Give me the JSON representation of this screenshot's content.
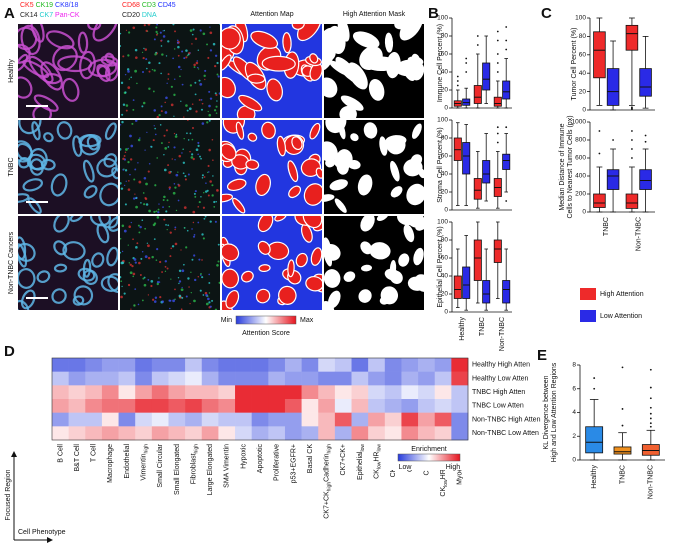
{
  "panel_labels": [
    "A",
    "B",
    "C",
    "D",
    "E"
  ],
  "figure_a": {
    "channel_groups": [
      [
        [
          {
            "text": "CK5",
            "color": "#ff2020"
          },
          {
            "text": "CK19",
            "color": "#22bb22"
          },
          {
            "text": "CK8/18",
            "color": "#2233ff"
          }
        ],
        [
          {
            "text": "CK14",
            "color": "#222222"
          },
          {
            "text": "CK7",
            "color": "#22cccc"
          },
          {
            "text": "Pan-CK",
            "color": "#ee22ee"
          }
        ]
      ],
      [
        [
          {
            "text": "CD68",
            "color": "#ff2020"
          },
          {
            "text": "CD3",
            "color": "#22bb22"
          },
          {
            "text": "CD45",
            "color": "#2233ff"
          }
        ],
        [
          {
            "text": "CD20",
            "color": "#222222"
          },
          {
            "text": "DNA",
            "color": "#22cccc"
          }
        ]
      ]
    ],
    "column_titles": [
      "Attention Map",
      "High Attention Mask"
    ],
    "row_labels": [
      "Healthy",
      "TNBC",
      "Non-TNBC Cancers"
    ],
    "colorbar": {
      "min_label": "Min",
      "max_label": "Max",
      "title": "Attention Score"
    }
  },
  "legend": [
    {
      "name": "High Attention",
      "color": "#ee2a2a"
    },
    {
      "name": "Low Attention",
      "color": "#2a2ae6"
    }
  ],
  "chart_data": [
    {
      "type": "box",
      "ylabel": [
        "Immune Cell Percent (%)"
      ],
      "ylim": [
        0,
        100
      ],
      "yticks": [
        0,
        20,
        40,
        60,
        80,
        100
      ],
      "series": [
        {
          "color": "#ee2a2a",
          "values": [
            {
              "min": 0,
              "q1": 2,
              "median": 5,
              "q3": 8,
              "max": 20,
              "outliers": [
                25,
                30,
                35
              ]
            },
            {
              "min": 0,
              "q1": 5,
              "median": 12,
              "q3": 25,
              "max": 60,
              "outliers": [
                70,
                80
              ]
            },
            {
              "min": 0,
              "q1": 2,
              "median": 5,
              "q3": 12,
              "max": 30,
              "outliers": [
                40,
                50,
                60,
                75,
                85
              ]
            }
          ]
        },
        {
          "color": "#2a2ae6",
          "values": [
            {
              "min": 0,
              "q1": 3,
              "median": 6,
              "q3": 10,
              "max": 22,
              "outliers": [
                40,
                50,
                55
              ]
            },
            {
              "min": 5,
              "q1": 20,
              "median": 32,
              "q3": 50,
              "max": 80,
              "outliers": []
            },
            {
              "min": 0,
              "q1": 10,
              "median": 18,
              "q3": 30,
              "max": 55,
              "outliers": [
                65,
                75,
                90
              ]
            }
          ]
        }
      ]
    },
    {
      "type": "box",
      "ylabel": [
        "Stroma Cell Percent (%)"
      ],
      "ylim": [
        0,
        100
      ],
      "yticks": [
        0,
        20,
        40,
        60,
        80,
        100
      ],
      "series": [
        {
          "color": "#ee2a2a",
          "values": [
            {
              "min": 5,
              "q1": 55,
              "median": 67,
              "q3": 80,
              "max": 97,
              "outliers": []
            },
            {
              "min": 2,
              "q1": 12,
              "median": 22,
              "q3": 35,
              "max": 65,
              "outliers": []
            },
            {
              "min": 2,
              "q1": 15,
              "median": 25,
              "q3": 35,
              "max": 65,
              "outliers": [
                75,
                85,
                92
              ]
            }
          ]
        },
        {
          "color": "#2a2ae6",
          "values": [
            {
              "min": 5,
              "q1": 40,
              "median": 60,
              "q3": 75,
              "max": 95,
              "outliers": []
            },
            {
              "min": 10,
              "q1": 30,
              "median": 40,
              "q3": 55,
              "max": 85,
              "outliers": []
            },
            {
              "min": 20,
              "q1": 45,
              "median": 55,
              "q3": 62,
              "max": 85,
              "outliers": [
                10,
                92
              ]
            }
          ]
        }
      ]
    },
    {
      "type": "box",
      "ylabel": [
        "Epithelial Cell Percent (%)"
      ],
      "ylim": [
        0,
        100
      ],
      "yticks": [
        0,
        20,
        40,
        60,
        80,
        100
      ],
      "categories": [
        "Healthy",
        "TNBC",
        "Non-TNBC"
      ],
      "series": [
        {
          "color": "#ee2a2a",
          "values": [
            {
              "min": 5,
              "q1": 15,
              "median": 25,
              "q3": 40,
              "max": 70,
              "outliers": []
            },
            {
              "min": 10,
              "q1": 35,
              "median": 60,
              "q3": 80,
              "max": 100,
              "outliers": []
            },
            {
              "min": 15,
              "q1": 55,
              "median": 70,
              "q3": 80,
              "max": 100,
              "outliers": []
            }
          ]
        },
        {
          "color": "#2a2ae6",
          "values": [
            {
              "min": 2,
              "q1": 15,
              "median": 30,
              "q3": 50,
              "max": 85,
              "outliers": []
            },
            {
              "min": 2,
              "q1": 10,
              "median": 20,
              "q3": 35,
              "max": 70,
              "outliers": []
            },
            {
              "min": 2,
              "q1": 10,
              "median": 25,
              "q3": 35,
              "max": 70,
              "outliers": []
            }
          ]
        }
      ]
    },
    {
      "type": "box",
      "ylabel": [
        "Tumor Cell Percent (%)"
      ],
      "ylim": [
        0,
        100
      ],
      "yticks": [
        0,
        20,
        40,
        60,
        80,
        100
      ],
      "series": [
        {
          "color": "#ee2a2a",
          "values": [
            {
              "min": 5,
              "q1": 35,
              "median": 65,
              "q3": 85,
              "max": 100,
              "outliers": []
            },
            {
              "min": 5,
              "q1": 65,
              "median": 83,
              "q3": 92,
              "max": 100,
              "outliers": [
                1,
                2,
                3
              ]
            }
          ]
        },
        {
          "color": "#2a2ae6",
          "values": [
            {
              "min": 0,
              "q1": 5,
              "median": 20,
              "q3": 45,
              "max": 75,
              "outliers": []
            },
            {
              "min": 2,
              "q1": 15,
              "median": 25,
              "q3": 45,
              "max": 80,
              "outliers": []
            }
          ]
        }
      ]
    },
    {
      "type": "box",
      "ylabel": [
        "Median Distance of Immune",
        "Cells to Nearest Tumor Cells (px)"
      ],
      "ylim": [
        0,
        1000
      ],
      "yticks": [
        0,
        200,
        400,
        600,
        800,
        1000
      ],
      "categories": [
        "TNBC",
        "Non-TNBC"
      ],
      "series": [
        {
          "color": "#ee2a2a",
          "values": [
            {
              "min": 0,
              "q1": 50,
              "median": 100,
              "q3": 200,
              "max": 500,
              "outliers": [
                650,
                900
              ]
            },
            {
              "min": 0,
              "q1": 40,
              "median": 100,
              "q3": 200,
              "max": 500,
              "outliers": [
                600,
                700,
                800,
                900
              ]
            }
          ]
        },
        {
          "color": "#2a2ae6",
          "values": [
            {
              "min": 0,
              "q1": 250,
              "median": 400,
              "q3": 470,
              "max": 700,
              "outliers": [
                800
              ]
            },
            {
              "min": 0,
              "q1": 250,
              "median": 350,
              "q3": 470,
              "max": 700,
              "outliers": [
                780,
                850
              ]
            }
          ]
        }
      ]
    },
    {
      "type": "heatmap",
      "rows": [
        "Healthy High Atten",
        "Healthy Low Atten",
        "TNBC High Atten",
        "TNBC Low Atten",
        "Non-TNBC High Atten",
        "Non-TNBC Low Atten"
      ],
      "columns": [
        [
          {
            "text": "B Cell"
          }
        ],
        [
          {
            "text": "B&T Cell"
          }
        ],
        [
          {
            "text": "T Cell"
          }
        ],
        [
          {
            "text": "Macrophage"
          }
        ],
        [
          {
            "text": "Endothelial"
          }
        ],
        [
          {
            "text": "Vimentin"
          },
          {
            "text": "high",
            "sub": true
          }
        ],
        [
          {
            "text": "Small Circular"
          }
        ],
        [
          {
            "text": "Small Elongated"
          }
        ],
        [
          {
            "text": "Fibroblast"
          },
          {
            "text": "high",
            "sub": true
          }
        ],
        [
          {
            "text": "Large Elongated"
          }
        ],
        [
          {
            "text": "SMA Vimentin"
          }
        ],
        [
          {
            "text": "Hypoxic"
          }
        ],
        [
          {
            "text": "Apoptotic"
          }
        ],
        [
          {
            "text": "Proliferative"
          }
        ],
        [
          {
            "text": "p53+EGFR+"
          }
        ],
        [
          {
            "text": "Basal CK"
          }
        ],
        [
          {
            "text": "CK7+CK"
          },
          {
            "text": "high",
            "sub": true
          },
          {
            "text": "Cadherin"
          },
          {
            "text": "high",
            "sub": true
          }
        ],
        [
          {
            "text": "CK7+CK+"
          }
        ],
        [
          {
            "text": "Epithelial"
          },
          {
            "text": "low",
            "sub": true
          }
        ],
        [
          {
            "text": "CK"
          },
          {
            "text": "low",
            "sub": true
          },
          {
            "text": "HR"
          },
          {
            "text": "low",
            "sub": true
          }
        ],
        [
          {
            "text": "CK+ HR"
          },
          {
            "text": "low",
            "sub": true
          }
        ],
        [
          {
            "text": "CK+HR+"
          }
        ],
        [
          {
            "text": "CK+HR"
          },
          {
            "text": "low",
            "sub": true
          }
        ],
        [
          {
            "text": "CK"
          },
          {
            "text": "low",
            "sub": true
          },
          {
            "text": "HR"
          },
          {
            "text": "high",
            "sub": true
          },
          {
            "text": "p53+"
          }
        ],
        [
          {
            "text": "Myoepithelial"
          }
        ]
      ],
      "values": [
        [
          -0.7,
          -0.7,
          -0.6,
          -0.5,
          -0.5,
          -0.7,
          -0.6,
          -0.6,
          -0.3,
          -0.6,
          -0.7,
          -0.7,
          -0.7,
          -0.6,
          -0.4,
          -0.6,
          -0.2,
          -0.3,
          -0.7,
          -0.3,
          -0.6,
          -0.5,
          -0.4,
          -0.5,
          0.9
        ],
        [
          -0.3,
          -0.5,
          -0.4,
          -0.4,
          -0.3,
          -0.6,
          -0.3,
          -0.2,
          -0.1,
          -0.4,
          -0.6,
          -0.6,
          -0.6,
          -0.4,
          -0.5,
          -0.5,
          -0.6,
          -0.6,
          -0.3,
          -0.5,
          -0.6,
          -0.4,
          -0.5,
          -0.3,
          0.8
        ],
        [
          0.3,
          0.2,
          0.3,
          0.5,
          0.1,
          0.4,
          0.6,
          0.4,
          0.3,
          0.3,
          0.2,
          0.9,
          0.9,
          0.9,
          0.9,
          0.5,
          0.3,
          0.1,
          0.2,
          -0.2,
          -0.3,
          -0.1,
          -0.2,
          0.1,
          -0.3
        ],
        [
          0.4,
          0.3,
          0.5,
          0.6,
          0.6,
          0.8,
          0.8,
          0.7,
          0.8,
          0.6,
          0.5,
          0.9,
          0.9,
          0.9,
          0.7,
          0.1,
          0.4,
          -0.1,
          0.3,
          -0.3,
          -0.4,
          -0.5,
          -0.3,
          -0.2,
          -0.3
        ],
        [
          -0.5,
          -0.3,
          -0.3,
          0.1,
          -0.6,
          -0.2,
          -0.1,
          -0.3,
          -0.4,
          -0.2,
          -0.3,
          -0.3,
          -0.6,
          -0.5,
          -0.5,
          0.1,
          0.3,
          0.7,
          -0.4,
          0.4,
          0.2,
          0.8,
          0.4,
          0.7,
          -0.6
        ],
        [
          0.1,
          0.2,
          0.3,
          0.4,
          0.3,
          0.2,
          0.4,
          0.3,
          0.2,
          0.4,
          0.1,
          -0.2,
          -0.4,
          -0.3,
          -0.5,
          -0.4,
          0.3,
          -0.4,
          0.5,
          0.2,
          0.1,
          0.5,
          0.3,
          0.2,
          -0.6
        ]
      ],
      "zlim": [
        -1,
        1
      ],
      "colorbar": {
        "title": "Enrichment",
        "low_label": "Low",
        "high_label": "High"
      },
      "axis_labels": {
        "y": "Focused Region",
        "x": "Cell Phenotype"
      }
    },
    {
      "type": "box",
      "ylabel": [
        "KL Divergence between",
        "High and Low Attention Regions"
      ],
      "ylim": [
        0,
        8
      ],
      "yticks": [
        0,
        2,
        4,
        6,
        8
      ],
      "categories": [
        "Healthy",
        "TNBC",
        "Non-TNBC"
      ],
      "series": [
        {
          "colors": [
            "#2a8ae6",
            "#f0901e",
            "#f06030"
          ],
          "values": [
            {
              "min": 0,
              "q1": 0.6,
              "median": 1.5,
              "q3": 2.8,
              "max": 5.1,
              "outliers": [
                6.0,
                6.9
              ]
            },
            {
              "min": 0,
              "q1": 0.5,
              "median": 0.7,
              "q3": 1.1,
              "max": 2.3,
              "outliers": [
                2.9,
                4.3,
                7.8
              ]
            },
            {
              "min": 0,
              "q1": 0.4,
              "median": 0.8,
              "q3": 1.3,
              "max": 2.5,
              "outliers": [
                2.8,
                3.1,
                3.5,
                3.9,
                4.4,
                5.2,
                6.1,
                7.6
              ]
            }
          ]
        }
      ]
    }
  ]
}
